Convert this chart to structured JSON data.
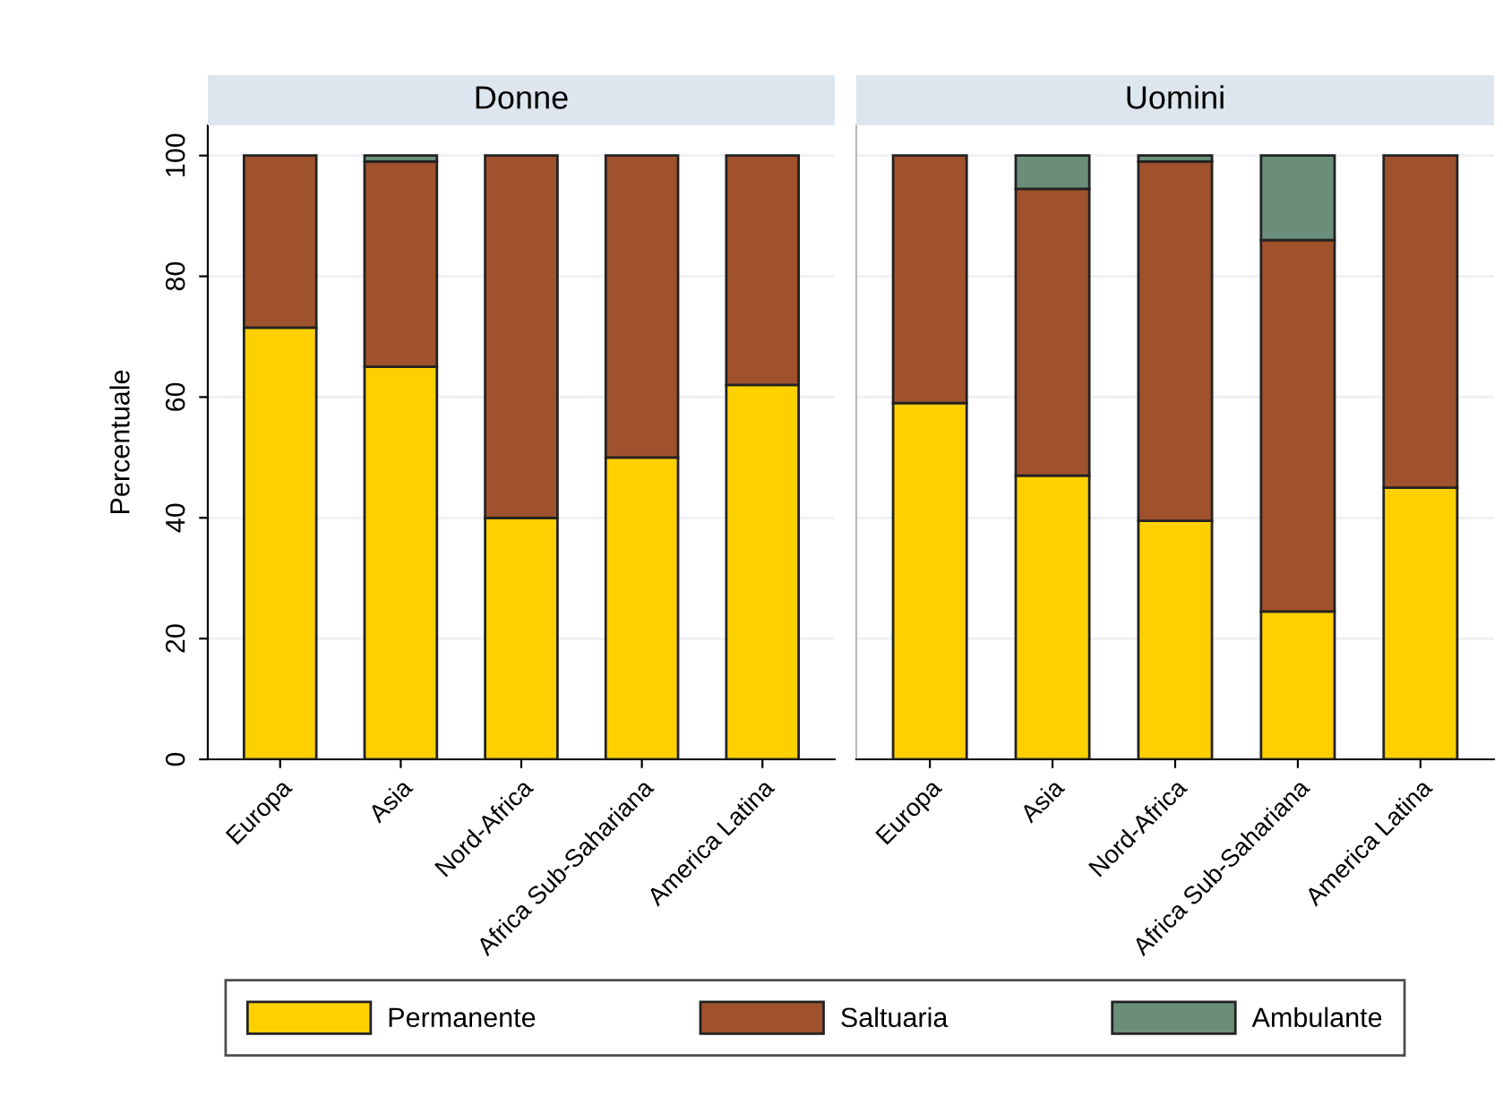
{
  "chart_data": [
    {
      "type": "bar",
      "stacked": true,
      "title": "Donne",
      "ylabel": "Percentuale",
      "categories": [
        "Europa",
        "Asia",
        "Nord-Africa",
        "Africa Sub-Sahariana",
        "America Latina"
      ],
      "ylim": [
        0,
        105
      ],
      "yticks": [
        0,
        20,
        40,
        60,
        80,
        100
      ],
      "grid": "y",
      "legend": "bottom",
      "series": [
        {
          "name": "Permanente",
          "color": "#ffd000",
          "values": [
            71.5,
            65,
            40,
            50,
            62
          ]
        },
        {
          "name": "Saltuaria",
          "color": "#a0522d",
          "values": [
            28.5,
            34,
            60,
            50,
            38
          ]
        },
        {
          "name": "Ambulante",
          "color": "#6b8e7b",
          "values": [
            null,
            1,
            null,
            null,
            null
          ]
        }
      ]
    },
    {
      "type": "bar",
      "stacked": true,
      "title": "Uomini",
      "categories": [
        "Europa",
        "Asia",
        "Nord-Africa",
        "Africa Sub-Sahariana",
        "America Latina"
      ],
      "ylim": [
        0,
        105
      ],
      "yticks": [
        0,
        20,
        40,
        60,
        80,
        100
      ],
      "grid": "y",
      "tick_labels": "x",
      "series": [
        {
          "color": "#ffd000",
          "values": [
            59,
            47,
            39.5,
            24.5,
            45
          ]
        },
        {
          "color": "#a0522d",
          "values": [
            41,
            47.5,
            59.5,
            61.5,
            55
          ]
        },
        {
          "color": "#6b8e7b",
          "values": [
            null,
            5.5,
            1,
            14,
            null
          ]
        }
      ]
    }
  ]
}
